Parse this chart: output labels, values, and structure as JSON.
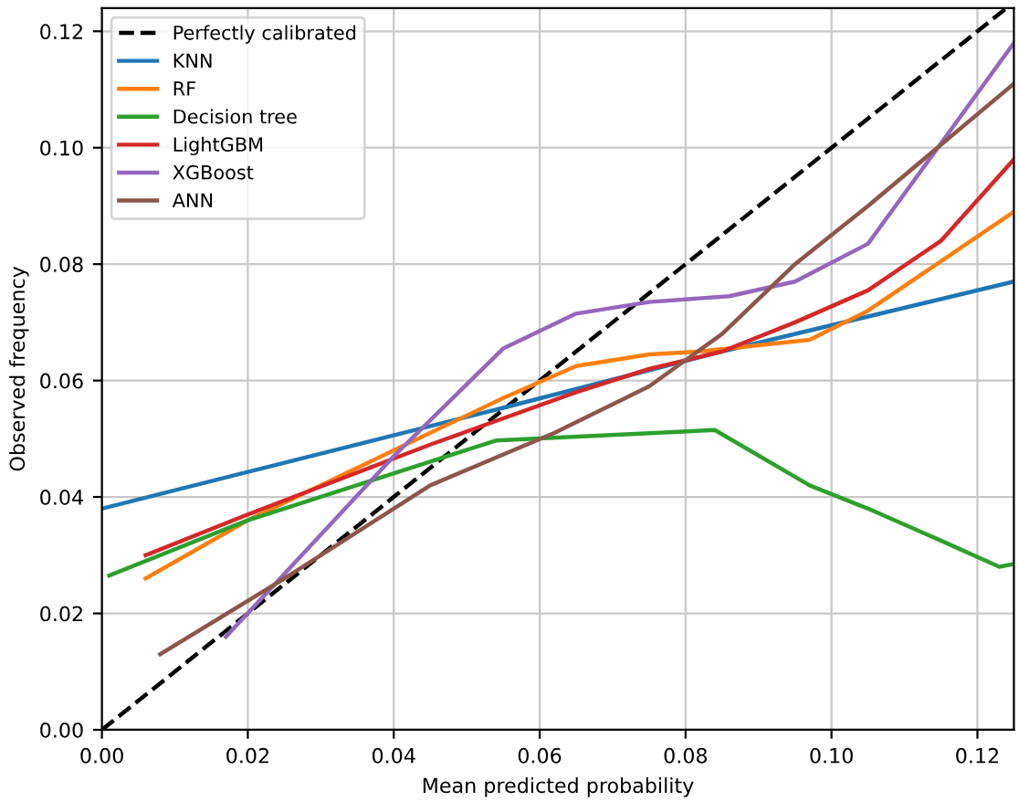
{
  "chart_data": {
    "type": "line",
    "xlabel": "Mean predicted probability",
    "ylabel": "Observed frequency",
    "xlim": [
      0,
      0.125
    ],
    "ylim": [
      0,
      0.124
    ],
    "xticks": [
      {
        "value": 0,
        "label": "0.00"
      },
      {
        "value": 0.02,
        "label": "0.02"
      },
      {
        "value": 0.04,
        "label": "0.04"
      },
      {
        "value": 0.06,
        "label": "0.06"
      },
      {
        "value": 0.08,
        "label": "0.08"
      },
      {
        "value": 0.1,
        "label": "0.10"
      },
      {
        "value": 0.12,
        "label": "0.12"
      }
    ],
    "yticks": [
      {
        "value": 0,
        "label": "0.00"
      },
      {
        "value": 0.02,
        "label": "0.02"
      },
      {
        "value": 0.04,
        "label": "0.04"
      },
      {
        "value": 0.06,
        "label": "0.06"
      },
      {
        "value": 0.08,
        "label": "0.08"
      },
      {
        "value": 0.1,
        "label": "0.10"
      },
      {
        "value": 0.12,
        "label": "0.12"
      }
    ],
    "grid": true,
    "legend": "top left",
    "marker": "none",
    "series": [
      {
        "name": "Perfectly calibrated",
        "color": "#000000",
        "line_style": "dashed",
        "x": [
          0,
          0.124
        ],
        "values": [
          0,
          0.124
        ]
      },
      {
        "name": "KNN",
        "color": "#1f77b4",
        "x": [
          0,
          0.054,
          0.085,
          0.125
        ],
        "values": [
          0.038,
          0.055,
          0.065,
          0.077
        ]
      },
      {
        "name": "RF",
        "color": "#ff7f0e",
        "x": [
          0.006,
          0.02,
          0.04,
          0.055,
          0.065,
          0.075,
          0.082,
          0.097,
          0.105,
          0.125
        ],
        "values": [
          0.026,
          0.036,
          0.048,
          0.057,
          0.0625,
          0.0645,
          0.065,
          0.067,
          0.072,
          0.089
        ]
      },
      {
        "name": "Decision tree",
        "color": "#2ca02c",
        "x": [
          0.001,
          0.02,
          0.054,
          0.084,
          0.097,
          0.105,
          0.115,
          0.123,
          0.125
        ],
        "values": [
          0.0265,
          0.036,
          0.0497,
          0.0515,
          0.042,
          0.038,
          0.0325,
          0.028,
          0.0285
        ]
      },
      {
        "name": "LightGBM",
        "color": "#d62728",
        "x": [
          0.006,
          0.02,
          0.045,
          0.065,
          0.075,
          0.085,
          0.095,
          0.105,
          0.115,
          0.125
        ],
        "values": [
          0.03,
          0.037,
          0.049,
          0.058,
          0.062,
          0.065,
          0.07,
          0.0755,
          0.084,
          0.098
        ]
      },
      {
        "name": "XGBoost",
        "color": "#9467bd",
        "x": [
          0.017,
          0.04,
          0.055,
          0.065,
          0.075,
          0.086,
          0.095,
          0.105,
          0.125
        ],
        "values": [
          0.016,
          0.047,
          0.0655,
          0.0715,
          0.0735,
          0.0745,
          0.077,
          0.0835,
          0.118
        ]
      },
      {
        "name": "ANN",
        "color": "#8c564b",
        "x": [
          0.008,
          0.025,
          0.045,
          0.062,
          0.075,
          0.085,
          0.095,
          0.105,
          0.125
        ],
        "values": [
          0.013,
          0.026,
          0.042,
          0.051,
          0.059,
          0.068,
          0.08,
          0.09,
          0.111
        ]
      }
    ]
  }
}
